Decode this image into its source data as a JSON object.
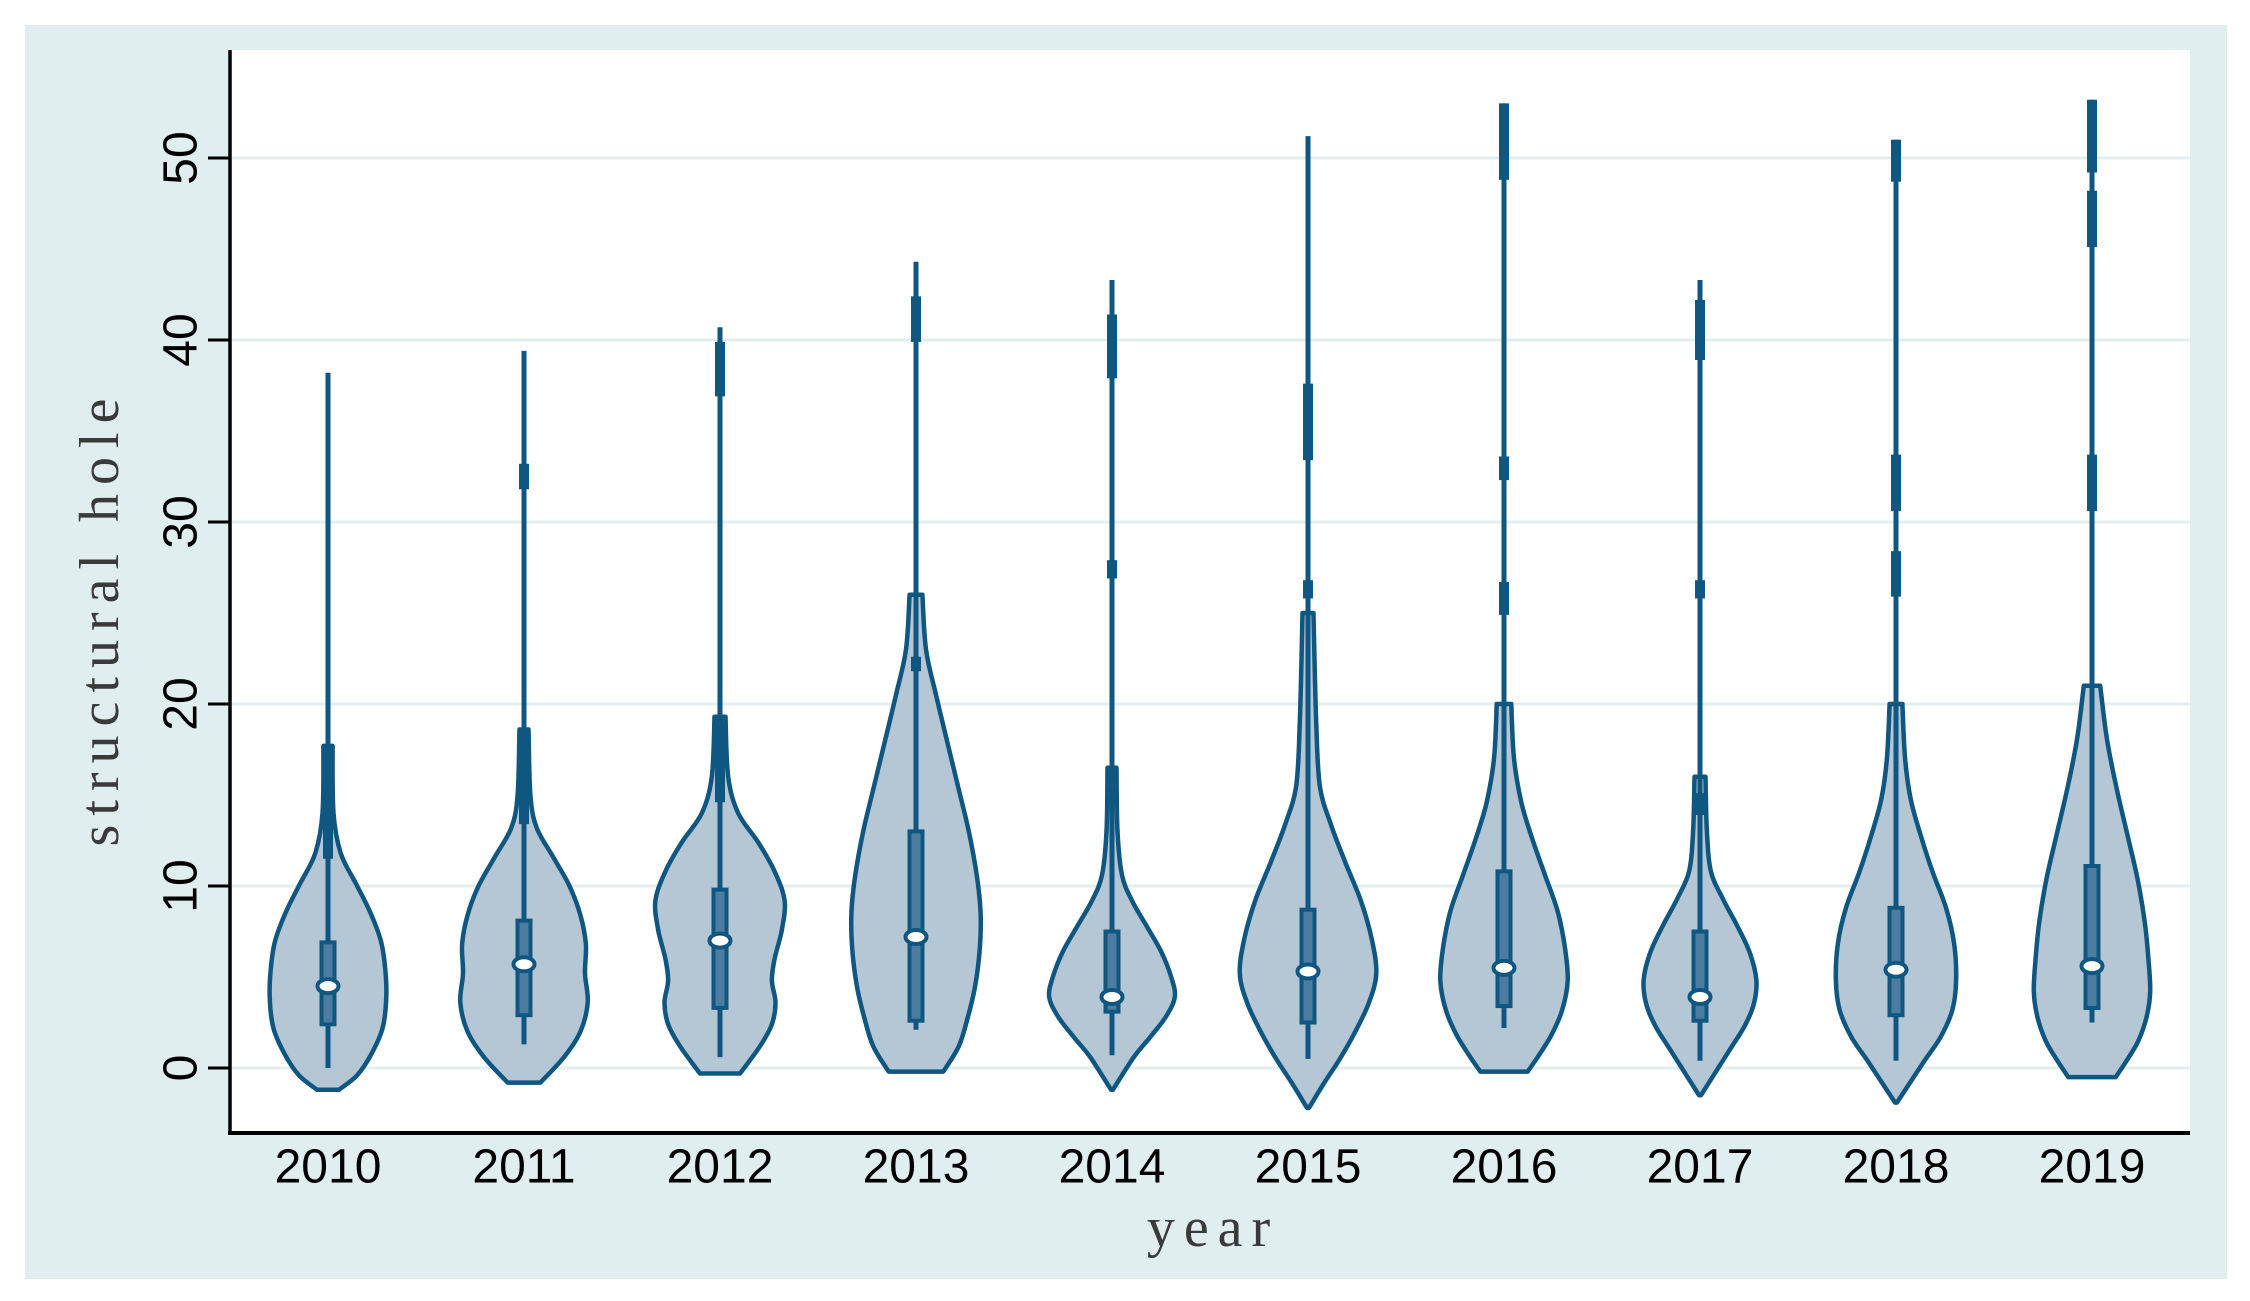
{
  "page": {
    "background": "#ffffff",
    "panel_background": "#e1eef0",
    "plot_background": "#ffffff"
  },
  "chart_data": {
    "type": "violin",
    "title": "",
    "xlabel": "year",
    "ylabel": "structural hole",
    "x_categories": [
      "2010",
      "2011",
      "2012",
      "2013",
      "2014",
      "2015",
      "2016",
      "2017",
      "2018",
      "2019"
    ],
    "y_ticks": [
      0,
      10,
      20,
      30,
      40,
      50
    ],
    "ylim": [
      -3.6,
      55.9
    ],
    "grid": "horizontal",
    "legend": "none",
    "colors": {
      "violin_fill": "#b5c7d4",
      "violin_stroke": "#0f5680",
      "box_fill": "#4c7ca0",
      "box_stroke": "#0f5680",
      "median_fill": "#ffffff",
      "gridline": "#e3eef1",
      "axis": "#000000",
      "tick_label": "#000000",
      "axis_title": "#3a3a3a"
    },
    "series": [
      {
        "label": "2010",
        "median": 4.5,
        "q1": 2.4,
        "q3": 6.9,
        "line_low": 0.0,
        "max": 38.2,
        "outlier_segments": [
          [
            11.5,
            17.5
          ]
        ],
        "profile": [
          [
            17.7,
            0.25
          ],
          [
            14,
            0.3
          ],
          [
            11.8,
            0.7
          ],
          [
            10.2,
            1.5
          ],
          [
            8.6,
            2.3
          ],
          [
            7,
            2.9
          ],
          [
            5.4,
            3.15
          ],
          [
            3.8,
            3.2
          ],
          [
            2.2,
            3.0
          ],
          [
            0.8,
            2.4
          ],
          [
            -0.4,
            1.6
          ],
          [
            -1.2,
            0.6
          ]
        ]
      },
      {
        "label": "2011",
        "median": 5.7,
        "q1": 2.9,
        "q3": 8.1,
        "line_low": 1.3,
        "max": 39.4,
        "outlier_segments": [
          [
            13.4,
            18.5
          ],
          [
            31.8,
            33.2
          ]
        ],
        "profile": [
          [
            18.6,
            0.25
          ],
          [
            15,
            0.35
          ],
          [
            13.2,
            0.7
          ],
          [
            11.6,
            1.6
          ],
          [
            10,
            2.5
          ],
          [
            8.4,
            3.1
          ],
          [
            6.8,
            3.4
          ],
          [
            5.2,
            3.35
          ],
          [
            3.6,
            3.5
          ],
          [
            2,
            3.1
          ],
          [
            0.6,
            2.2
          ],
          [
            -0.8,
            0.9
          ]
        ]
      },
      {
        "label": "2012",
        "median": 7.0,
        "q1": 3.3,
        "q3": 9.8,
        "line_low": 0.6,
        "max": 40.7,
        "outlier_segments": [
          [
            14.6,
            19.2
          ],
          [
            36.9,
            39.9
          ]
        ],
        "profile": [
          [
            19.3,
            0.3
          ],
          [
            16,
            0.45
          ],
          [
            14,
            1.0
          ],
          [
            12.4,
            2.1
          ],
          [
            10.8,
            3.0
          ],
          [
            9.2,
            3.55
          ],
          [
            7.6,
            3.4
          ],
          [
            6,
            3.0
          ],
          [
            4.8,
            2.85
          ],
          [
            3.6,
            3.05
          ],
          [
            2.4,
            2.85
          ],
          [
            1.2,
            2.2
          ],
          [
            -0.3,
            1.1
          ]
        ]
      },
      {
        "label": "2013",
        "median": 7.2,
        "q1": 2.6,
        "q3": 13.0,
        "line_low": 2.1,
        "max": 44.3,
        "outlier_segments": [
          [
            21.8,
            22.6
          ],
          [
            39.9,
            42.4
          ]
        ],
        "profile": [
          [
            26,
            0.35
          ],
          [
            23,
            0.55
          ],
          [
            20.5,
            1.1
          ],
          [
            18,
            1.7
          ],
          [
            15.5,
            2.3
          ],
          [
            13,
            2.9
          ],
          [
            10.5,
            3.35
          ],
          [
            8.5,
            3.55
          ],
          [
            6.5,
            3.5
          ],
          [
            4.5,
            3.25
          ],
          [
            2.8,
            2.85
          ],
          [
            1.2,
            2.35
          ],
          [
            -0.2,
            1.5
          ]
        ]
      },
      {
        "label": "2014",
        "median": 3.9,
        "q1": 3.1,
        "q3": 7.5,
        "line_low": 0.7,
        "max": 43.3,
        "outlier_segments": [
          [
            15.2,
            16.6
          ],
          [
            26.9,
            27.9
          ],
          [
            37.9,
            41.4
          ]
        ],
        "profile": [
          [
            16.5,
            0.25
          ],
          [
            13,
            0.3
          ],
          [
            10.6,
            0.55
          ],
          [
            9.2,
            1.1
          ],
          [
            7.8,
            1.9
          ],
          [
            6.4,
            2.7
          ],
          [
            5,
            3.25
          ],
          [
            3.9,
            3.45
          ],
          [
            2.8,
            2.95
          ],
          [
            1.7,
            2.1
          ],
          [
            0.6,
            1.2
          ],
          [
            -1.2,
            0.05
          ]
        ]
      },
      {
        "label": "2015",
        "median": 5.3,
        "q1": 2.5,
        "q3": 8.7,
        "line_low": 0.5,
        "max": 51.2,
        "outlier_segments": [
          [
            25.8,
            26.8
          ],
          [
            33.4,
            37.6
          ]
        ],
        "profile": [
          [
            25,
            0.3
          ],
          [
            19,
            0.45
          ],
          [
            15.5,
            0.65
          ],
          [
            13.4,
            1.25
          ],
          [
            11.3,
            2.05
          ],
          [
            9.2,
            2.9
          ],
          [
            7.1,
            3.5
          ],
          [
            5.2,
            3.75
          ],
          [
            3.6,
            3.35
          ],
          [
            2,
            2.6
          ],
          [
            0.5,
            1.75
          ],
          [
            -0.8,
            0.9
          ],
          [
            -2.2,
            0.05
          ]
        ]
      },
      {
        "label": "2016",
        "median": 5.5,
        "q1": 3.4,
        "q3": 10.8,
        "line_low": 2.2,
        "max": 53.0,
        "outlier_segments": [
          [
            24.9,
            26.7
          ],
          [
            32.3,
            33.6
          ],
          [
            48.8,
            53.0
          ]
        ],
        "profile": [
          [
            20,
            0.4
          ],
          [
            17,
            0.55
          ],
          [
            14.6,
            0.95
          ],
          [
            12.6,
            1.55
          ],
          [
            10.6,
            2.25
          ],
          [
            8.6,
            2.95
          ],
          [
            6.6,
            3.35
          ],
          [
            4.8,
            3.5
          ],
          [
            3.2,
            3.2
          ],
          [
            1.8,
            2.6
          ],
          [
            0.6,
            1.85
          ],
          [
            -0.2,
            1.3
          ]
        ]
      },
      {
        "label": "2017",
        "median": 3.9,
        "q1": 2.6,
        "q3": 7.5,
        "line_low": 0.4,
        "max": 43.3,
        "outlier_segments": [
          [
            13.9,
            15.1
          ],
          [
            25.8,
            26.8
          ],
          [
            38.9,
            42.2
          ]
        ],
        "profile": [
          [
            16,
            0.3
          ],
          [
            13,
            0.38
          ],
          [
            10.8,
            0.6
          ],
          [
            9.3,
            1.25
          ],
          [
            7.8,
            2.05
          ],
          [
            6.3,
            2.75
          ],
          [
            4.8,
            3.1
          ],
          [
            3.5,
            2.95
          ],
          [
            2.3,
            2.45
          ],
          [
            1.1,
            1.7
          ],
          [
            0,
            1.0
          ],
          [
            -1.5,
            0.05
          ]
        ]
      },
      {
        "label": "2018",
        "median": 5.4,
        "q1": 2.9,
        "q3": 8.8,
        "line_low": 0.4,
        "max": 51.0,
        "outlier_segments": [
          [
            25.9,
            28.4
          ],
          [
            30.6,
            33.7
          ],
          [
            48.7,
            51.0
          ]
        ],
        "profile": [
          [
            20,
            0.35
          ],
          [
            17,
            0.5
          ],
          [
            14.8,
            0.8
          ],
          [
            12.8,
            1.35
          ],
          [
            10.8,
            2.0
          ],
          [
            8.8,
            2.75
          ],
          [
            6.8,
            3.2
          ],
          [
            4.8,
            3.3
          ],
          [
            3.2,
            3.1
          ],
          [
            1.7,
            2.45
          ],
          [
            0.3,
            1.5
          ],
          [
            -1.9,
            0.05
          ]
        ]
      },
      {
        "label": "2019",
        "median": 5.6,
        "q1": 3.3,
        "q3": 11.1,
        "line_low": 2.5,
        "max": 53.2,
        "outlier_segments": [
          [
            30.6,
            33.7
          ],
          [
            45.1,
            48.2
          ],
          [
            49.2,
            53.2
          ]
        ],
        "profile": [
          [
            21,
            0.45
          ],
          [
            18.2,
            0.8
          ],
          [
            15.6,
            1.3
          ],
          [
            13,
            1.9
          ],
          [
            10.4,
            2.5
          ],
          [
            8,
            2.9
          ],
          [
            6,
            3.1
          ],
          [
            4.2,
            3.2
          ],
          [
            2.8,
            3.0
          ],
          [
            1.5,
            2.55
          ],
          [
            0.4,
            1.9
          ],
          [
            -0.5,
            1.3
          ]
        ]
      }
    ]
  }
}
